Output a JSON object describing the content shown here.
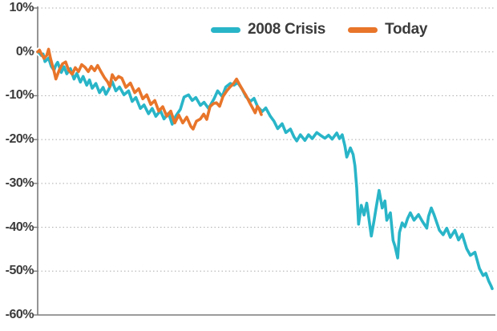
{
  "chart_data": {
    "type": "line",
    "title": "",
    "xlabel": "",
    "ylabel": "",
    "x_range": [
      0,
      250
    ],
    "ylim": [
      -60,
      10
    ],
    "grid": "horizontal dotted",
    "legend_position": "top-center",
    "y_ticks": [
      {
        "label": "10%",
        "value": 10
      },
      {
        "label": "0%",
        "value": 0
      },
      {
        "label": "-10%",
        "value": -10
      },
      {
        "label": "-20%",
        "value": -20
      },
      {
        "label": "-30%",
        "value": -30
      },
      {
        "label": "-40%",
        "value": -40
      },
      {
        "label": "-50%",
        "value": -50
      },
      {
        "label": "-60%",
        "value": -60
      }
    ],
    "axis_color": "#7a7a7a",
    "gridline_color": "#ababab",
    "label_color": "#3b3b3b",
    "series": [
      {
        "name": "2008 Crisis",
        "color": "#29b5c8",
        "points": [
          [
            0,
            0
          ],
          [
            1,
            -0.3
          ],
          [
            2,
            -0.8
          ],
          [
            3,
            -0.5
          ],
          [
            4,
            -2.2
          ],
          [
            6,
            -1.4
          ],
          [
            7.5,
            -3.3
          ],
          [
            9,
            -4.2
          ],
          [
            10,
            -3.0
          ],
          [
            11,
            -2.4
          ],
          [
            13,
            -4.7
          ],
          [
            14.5,
            -3.4
          ],
          [
            16,
            -5.0
          ],
          [
            18,
            -3.8
          ],
          [
            20,
            -6.2
          ],
          [
            21.5,
            -4.9
          ],
          [
            23.5,
            -6.9
          ],
          [
            25,
            -5.6
          ],
          [
            27,
            -7.6
          ],
          [
            28.5,
            -6.4
          ],
          [
            30,
            -8.3
          ],
          [
            32,
            -7.2
          ],
          [
            34,
            -9.3
          ],
          [
            36,
            -8.1
          ],
          [
            37.5,
            -9.7
          ],
          [
            39,
            -8.6
          ],
          [
            41,
            -6.8
          ],
          [
            43,
            -8.9
          ],
          [
            45,
            -8.0
          ],
          [
            47.5,
            -9.8
          ],
          [
            50,
            -8.9
          ],
          [
            52,
            -11.3
          ],
          [
            54,
            -10.4
          ],
          [
            56.5,
            -12.9
          ],
          [
            58.5,
            -12.1
          ],
          [
            61,
            -14.1
          ],
          [
            63,
            -12.9
          ],
          [
            65,
            -14.7
          ],
          [
            67.5,
            -13.4
          ],
          [
            69.5,
            -15.3
          ],
          [
            72,
            -14.0
          ],
          [
            74,
            -16.5
          ],
          [
            76,
            -14.6
          ],
          [
            78.5,
            -13.1
          ],
          [
            80.5,
            -10.3
          ],
          [
            83,
            -9.8
          ],
          [
            85,
            -11.1
          ],
          [
            87,
            -10.4
          ],
          [
            89.5,
            -12.2
          ],
          [
            91.5,
            -11.5
          ],
          [
            94,
            -12.9
          ],
          [
            97,
            -10.7
          ],
          [
            99,
            -8.9
          ],
          [
            101.5,
            -10.2
          ],
          [
            103.5,
            -8.0
          ],
          [
            106,
            -7.2
          ],
          [
            108,
            -7.6
          ],
          [
            110,
            -7.0
          ],
          [
            112.5,
            -8.5
          ],
          [
            114.5,
            -10.2
          ],
          [
            117,
            -11.3
          ],
          [
            119,
            -10.6
          ],
          [
            121,
            -12.5
          ],
          [
            123.5,
            -13.6
          ],
          [
            125.5,
            -12.8
          ],
          [
            128,
            -14.7
          ],
          [
            130,
            -15.8
          ],
          [
            132,
            -17.5
          ],
          [
            134.5,
            -16.4
          ],
          [
            136.5,
            -18.4
          ],
          [
            139,
            -17.6
          ],
          [
            141,
            -19.4
          ],
          [
            142.5,
            -20.3
          ],
          [
            144.5,
            -18.9
          ],
          [
            147,
            -20.2
          ],
          [
            149,
            -18.9
          ],
          [
            151,
            -19.8
          ],
          [
            153.5,
            -18.4
          ],
          [
            155.5,
            -19.0
          ],
          [
            158,
            -19.7
          ],
          [
            160,
            -19.0
          ],
          [
            162,
            -19.9
          ],
          [
            164.5,
            -18.5
          ],
          [
            166,
            -19.8
          ],
          [
            167.5,
            -18.9
          ],
          [
            169,
            -21.5
          ],
          [
            170,
            -24.0
          ],
          [
            172,
            -21.9
          ],
          [
            173.5,
            -23.4
          ],
          [
            174.5,
            -26.0
          ],
          [
            175.5,
            -31.0
          ],
          [
            176.5,
            -39.3
          ],
          [
            178,
            -35.0
          ],
          [
            179.5,
            -37.2
          ],
          [
            181,
            -34.5
          ],
          [
            182,
            -37.5
          ],
          [
            183.5,
            -42.0
          ],
          [
            185,
            -38.5
          ],
          [
            186,
            -36.0
          ],
          [
            187.8,
            -31.6
          ],
          [
            189.5,
            -35.6
          ],
          [
            191,
            -34.0
          ],
          [
            192,
            -38.4
          ],
          [
            194,
            -36.7
          ],
          [
            195.5,
            -43.0
          ],
          [
            196.5,
            -44.3
          ],
          [
            198,
            -47.0
          ],
          [
            199,
            -41.2
          ],
          [
            200.5,
            -39.0
          ],
          [
            202,
            -39.9
          ],
          [
            203.5,
            -38.0
          ],
          [
            205,
            -36.7
          ],
          [
            207,
            -38.4
          ],
          [
            209.5,
            -37.1
          ],
          [
            211.5,
            -38.6
          ],
          [
            214,
            -40.2
          ],
          [
            215,
            -37.5
          ],
          [
            216.5,
            -35.6
          ],
          [
            218,
            -37.1
          ],
          [
            221,
            -40.7
          ],
          [
            223,
            -41.7
          ],
          [
            225,
            -40.2
          ],
          [
            227,
            -42.3
          ],
          [
            229.5,
            -40.7
          ],
          [
            231.5,
            -42.9
          ],
          [
            233.5,
            -41.6
          ],
          [
            236,
            -44.9
          ],
          [
            238,
            -46.4
          ],
          [
            240.5,
            -45.7
          ],
          [
            243,
            -49.4
          ],
          [
            245,
            -51.0
          ],
          [
            246.5,
            -50.5
          ],
          [
            248,
            -52.2
          ],
          [
            249.5,
            -53.5
          ],
          [
            250,
            -54.0
          ]
        ]
      },
      {
        "name": "Today",
        "color": "#e8752a",
        "points": [
          [
            0,
            0
          ],
          [
            1,
            0.4
          ],
          [
            2,
            -0.4
          ],
          [
            3.5,
            -1.5
          ],
          [
            5,
            -0.8
          ],
          [
            6,
            0.6
          ],
          [
            7,
            -1.4
          ],
          [
            8,
            -2.9
          ],
          [
            9,
            -4.4
          ],
          [
            10,
            -6.2
          ],
          [
            12,
            -4.0
          ],
          [
            13.7,
            -2.7
          ],
          [
            15.4,
            -2.3
          ],
          [
            17,
            -4.2
          ],
          [
            19,
            -5.1
          ],
          [
            20.7,
            -3.6
          ],
          [
            22.5,
            -4.5
          ],
          [
            24.2,
            -2.9
          ],
          [
            26,
            -3.5
          ],
          [
            27.8,
            -4.5
          ],
          [
            29.5,
            -3.3
          ],
          [
            31.3,
            -4.3
          ],
          [
            33,
            -3.1
          ],
          [
            34.8,
            -4.5
          ],
          [
            36.6,
            -5.8
          ],
          [
            38.4,
            -6.8
          ],
          [
            39.7,
            -7.9
          ],
          [
            41,
            -5.2
          ],
          [
            42.8,
            -6.4
          ],
          [
            44.5,
            -5.6
          ],
          [
            46.3,
            -6.0
          ],
          [
            48.5,
            -8.1
          ],
          [
            51,
            -7.1
          ],
          [
            53.4,
            -9.3
          ],
          [
            55.6,
            -8.4
          ],
          [
            57.8,
            -10.7
          ],
          [
            60,
            -9.8
          ],
          [
            62.2,
            -12.0
          ],
          [
            64.4,
            -11.1
          ],
          [
            66.6,
            -13.5
          ],
          [
            68.8,
            -12.5
          ],
          [
            71,
            -14.7
          ],
          [
            73.2,
            -13.5
          ],
          [
            75.4,
            -16.2
          ],
          [
            77.6,
            -14.4
          ],
          [
            79.8,
            -16.2
          ],
          [
            82,
            -14.9
          ],
          [
            84.2,
            -17.0
          ],
          [
            85.5,
            -17.6
          ],
          [
            87.3,
            -15.8
          ],
          [
            89.5,
            -15.3
          ],
          [
            91.3,
            -14.2
          ],
          [
            93,
            -15.4
          ],
          [
            94.8,
            -12.5
          ],
          [
            96.6,
            -11.8
          ],
          [
            98.3,
            -11.6
          ],
          [
            100.1,
            -12.4
          ],
          [
            101.9,
            -10.2
          ],
          [
            104,
            -8.9
          ],
          [
            105.8,
            -8.0
          ],
          [
            107.6,
            -7.3
          ],
          [
            109.4,
            -6.2
          ],
          [
            111.1,
            -7.5
          ],
          [
            112.9,
            -8.8
          ],
          [
            114.7,
            -10.0
          ],
          [
            116.5,
            -11.5
          ],
          [
            118.2,
            -12.8
          ],
          [
            119.6,
            -13.9
          ],
          [
            120.9,
            -12.4
          ],
          [
            121.8,
            -13.0
          ],
          [
            123,
            -14.3
          ]
        ]
      }
    ]
  }
}
